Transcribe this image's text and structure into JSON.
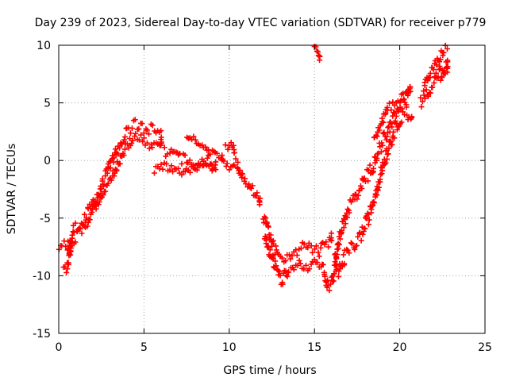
{
  "chart_data": {
    "type": "scatter",
    "title": "Day 239 of 2023, Sidereal Day-to-day VTEC variation (SDTVAR) for receiver p779",
    "xlabel": "GPS time / hours",
    "ylabel": "SDTVAR / TECUs",
    "xlim": [
      0,
      25
    ],
    "ylim": [
      -15,
      10
    ],
    "xticks": [
      0,
      5,
      10,
      15,
      20,
      25
    ],
    "yticks": [
      -15,
      -10,
      -5,
      0,
      5,
      10
    ],
    "grid": true,
    "marker": "+",
    "colors": {
      "series": "#ff0000",
      "axis": "#000000",
      "grid": "#a0a0a0"
    },
    "series": [
      {
        "name": "SDTVAR",
        "tracks": [
          {
            "points": [
              [
                0.0,
                -7.3
              ],
              [
                0.5,
                -7.6
              ],
              [
                0.9,
                -6.0
              ],
              [
                1.5,
                -5.0
              ],
              [
                2.0,
                -3.8
              ],
              [
                2.5,
                -2.2
              ],
              [
                3.0,
                -0.5
              ],
              [
                3.5,
                1.2
              ],
              [
                4.0,
                2.5
              ],
              [
                4.5,
                3.2
              ],
              [
                5.0,
                2.6
              ],
              [
                5.5,
                2.8
              ],
              [
                6.0,
                2.2
              ]
            ],
            "spread": 0.5
          },
          {
            "points": [
              [
                0.3,
                -9.6
              ],
              [
                0.5,
                -9.2
              ],
              [
                0.8,
                -7.0
              ],
              [
                1.5,
                -5.8
              ],
              [
                2.5,
                -3.0
              ],
              [
                3.2,
                -1.2
              ],
              [
                3.8,
                0.8
              ],
              [
                4.5,
                2.2
              ],
              [
                5.0,
                1.6
              ],
              [
                5.5,
                1.2
              ],
              [
                6.0,
                1.5
              ]
            ],
            "spread": 0.4
          },
          {
            "points": [
              [
                6.2,
                0.7
              ],
              [
                6.7,
                1.0
              ],
              [
                7.2,
                0.2
              ],
              [
                7.8,
                -0.5
              ],
              [
                8.3,
                -0.2
              ],
              [
                8.8,
                0.3
              ],
              [
                9.2,
                -0.4
              ]
            ],
            "spread": 0.5
          },
          {
            "points": [
              [
                5.6,
                -0.7
              ],
              [
                6.2,
                -0.6
              ],
              [
                6.8,
                -0.9
              ],
              [
                7.3,
                -1.2
              ],
              [
                7.9,
                -0.6
              ],
              [
                8.5,
                -0.2
              ],
              [
                9.0,
                -0.6
              ]
            ],
            "spread": 0.4
          },
          {
            "points": [
              [
                7.5,
                2.2
              ],
              [
                8.0,
                1.8
              ],
              [
                8.6,
                1.0
              ],
              [
                9.2,
                0.5
              ],
              [
                9.6,
                0.2
              ]
            ],
            "spread": 0.3
          },
          {
            "points": [
              [
                9.8,
                1.1
              ],
              [
                10.1,
                1.3
              ],
              [
                10.3,
                0.9
              ]
            ],
            "spread": 0.3
          },
          {
            "points": [
              [
                9.7,
                -0.3
              ],
              [
                10.0,
                -0.6
              ],
              [
                10.4,
                -0.1
              ],
              [
                10.8,
                -1.5
              ],
              [
                11.2,
                -2.3
              ],
              [
                11.6,
                -3.0
              ],
              [
                11.8,
                -3.5
              ]
            ],
            "spread": 0.4
          },
          {
            "points": [
              [
                12.0,
                -5.0
              ],
              [
                12.3,
                -6.2
              ],
              [
                12.6,
                -7.5
              ],
              [
                12.9,
                -8.2
              ],
              [
                13.3,
                -8.6
              ],
              [
                13.8,
                -8.3
              ],
              [
                14.3,
                -7.6
              ],
              [
                14.8,
                -7.4
              ],
              [
                15.2,
                -8.0
              ],
              [
                15.5,
                -7.4
              ],
              [
                15.8,
                -7.2
              ],
              [
                16.0,
                -6.8
              ]
            ],
            "spread": 0.5
          },
          {
            "points": [
              [
                12.1,
                -6.5
              ],
              [
                12.4,
                -8.0
              ],
              [
                12.8,
                -9.6
              ],
              [
                13.1,
                -10.4
              ],
              [
                13.5,
                -9.3
              ],
              [
                14.0,
                -8.8
              ],
              [
                14.5,
                -9.2
              ],
              [
                15.0,
                -8.7
              ],
              [
                15.4,
                -9.2
              ],
              [
                15.6,
                -9.8
              ],
              [
                15.8,
                -11.0
              ],
              [
                16.0,
                -10.6
              ],
              [
                16.3,
                -9.0
              ]
            ],
            "spread": 0.5
          },
          {
            "points": [
              [
                15.0,
                9.7
              ],
              [
                15.2,
                9.3
              ],
              [
                15.3,
                9.0
              ]
            ],
            "spread": 0.3
          },
          {
            "points": [
              [
                16.2,
                -8.5
              ],
              [
                16.6,
                -6.0
              ],
              [
                17.0,
                -4.2
              ],
              [
                17.4,
                -3.2
              ],
              [
                17.9,
                -1.8
              ],
              [
                18.4,
                -0.5
              ],
              [
                18.8,
                1.0
              ],
              [
                19.2,
                2.2
              ],
              [
                19.6,
                3.6
              ],
              [
                20.0,
                4.6
              ],
              [
                20.3,
                5.2
              ],
              [
                20.6,
                5.8
              ]
            ],
            "spread": 0.6
          },
          {
            "points": [
              [
                16.4,
                -9.8
              ],
              [
                16.8,
                -8.3
              ],
              [
                17.3,
                -7.4
              ],
              [
                17.8,
                -6.3
              ],
              [
                18.2,
                -4.8
              ],
              [
                18.6,
                -2.8
              ],
              [
                18.9,
                -1.0
              ],
              [
                19.2,
                0.5
              ],
              [
                19.5,
                1.8
              ],
              [
                19.8,
                3.0
              ],
              [
                20.1,
                3.9
              ],
              [
                20.4,
                4.3
              ]
            ],
            "spread": 0.6
          },
          {
            "points": [
              [
                18.5,
                2.0
              ],
              [
                18.9,
                3.2
              ],
              [
                19.3,
                4.5
              ],
              [
                19.7,
                4.8
              ],
              [
                20.2,
                5.5
              ],
              [
                20.6,
                6.3
              ]
            ],
            "spread": 0.4
          },
          {
            "points": [
              [
                20.5,
                3.6
              ],
              [
                20.7,
                3.7
              ]
            ],
            "spread": 0.2
          },
          {
            "points": [
              [
                21.2,
                5.0
              ],
              [
                21.5,
                5.6
              ],
              [
                22.0,
                6.8
              ],
              [
                22.4,
                8.0
              ],
              [
                22.8,
                8.3
              ]
            ],
            "spread": 0.5
          },
          {
            "points": [
              [
                21.4,
                6.3
              ],
              [
                21.8,
                7.6
              ],
              [
                22.2,
                8.6
              ],
              [
                22.6,
                9.6
              ],
              [
                22.9,
                10.0
              ]
            ],
            "spread": 0.4
          },
          {
            "points": [
              [
                22.4,
                7.1
              ],
              [
                22.6,
                7.6
              ],
              [
                22.8,
                7.9
              ]
            ],
            "spread": 0.3
          }
        ]
      }
    ]
  }
}
